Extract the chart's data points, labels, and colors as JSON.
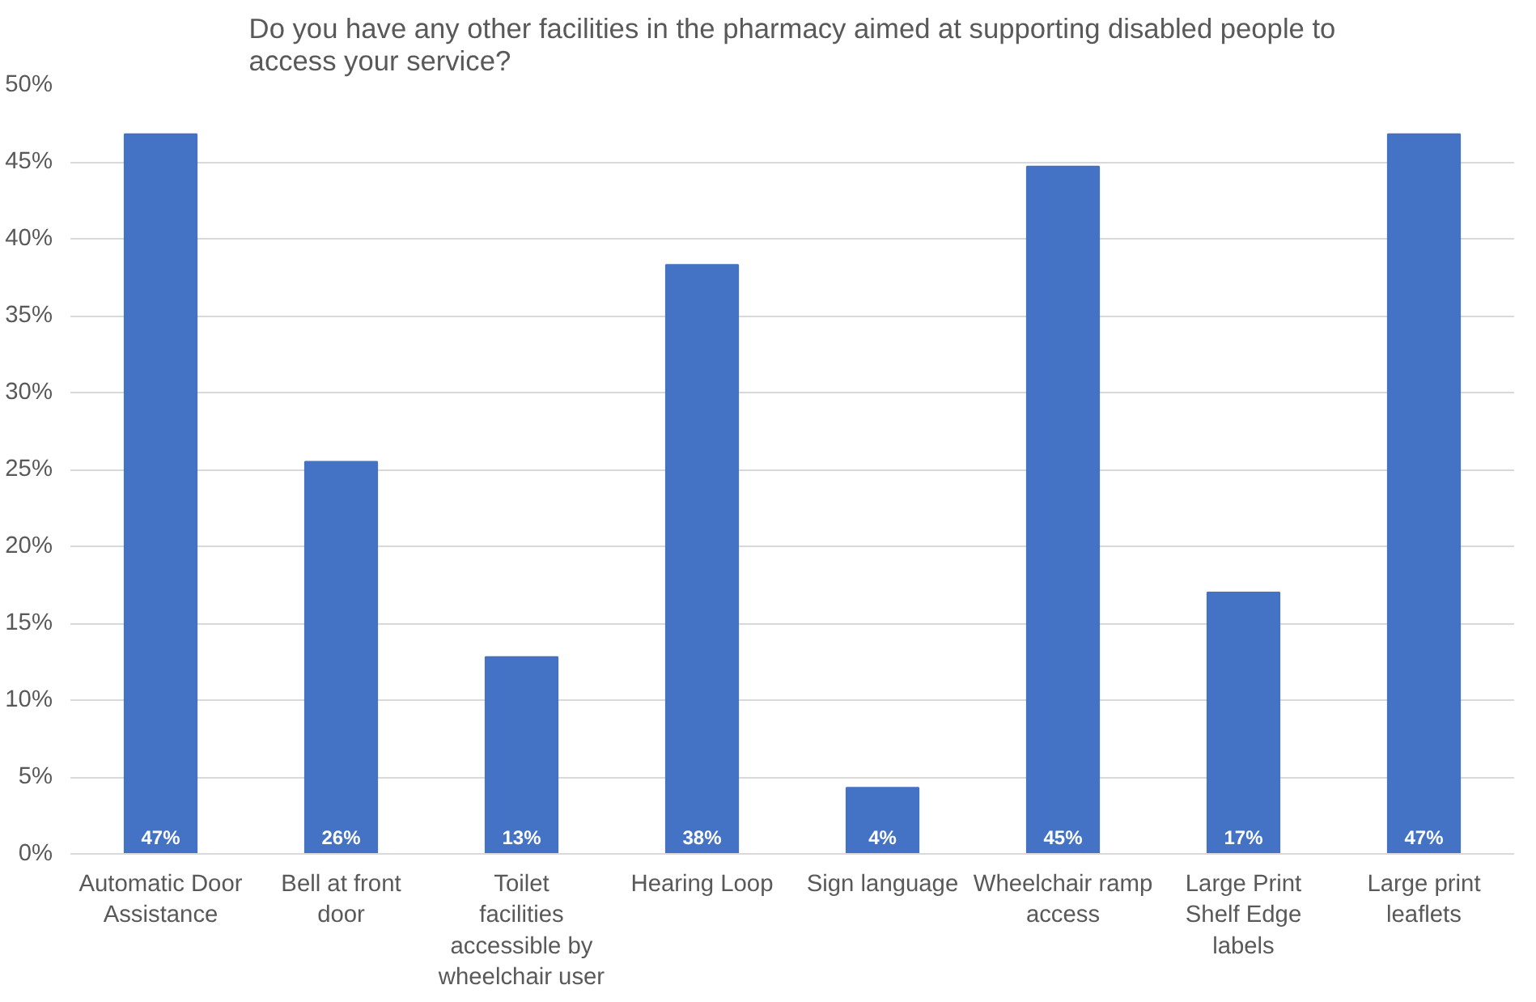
{
  "chart_data": {
    "type": "bar",
    "title": "Do you have any other facilities in the pharmacy aimed at supporting disabled people to access your service?",
    "categories": [
      "Automatic Door Assistance",
      "Bell at front door",
      "Toilet facilities accessible by wheelchair user",
      "Hearing Loop",
      "Sign language",
      "Wheelchair ramp access",
      "Large Print Shelf Edge labels",
      "Large print leaflets"
    ],
    "values": [
      46.8,
      25.5,
      12.8,
      38.3,
      4.3,
      44.7,
      17.0,
      46.8
    ],
    "value_labels": [
      "47%",
      "26%",
      "13%",
      "38%",
      "4%",
      "45%",
      "17%",
      "47%"
    ],
    "color": "#4472c4",
    "ylim": [
      0,
      50
    ],
    "yticks": [
      {
        "value": 0,
        "label": "0%"
      },
      {
        "value": 5,
        "label": "5%"
      },
      {
        "value": 10,
        "label": "10%"
      },
      {
        "value": 15,
        "label": "15%"
      },
      {
        "value": 20,
        "label": "20%"
      },
      {
        "value": 25,
        "label": "25%"
      },
      {
        "value": 30,
        "label": "30%"
      },
      {
        "value": 35,
        "label": "35%"
      },
      {
        "value": 40,
        "label": "40%"
      },
      {
        "value": 45,
        "label": "45%"
      },
      {
        "value": 50,
        "label": "50%"
      }
    ],
    "grid": "y"
  }
}
